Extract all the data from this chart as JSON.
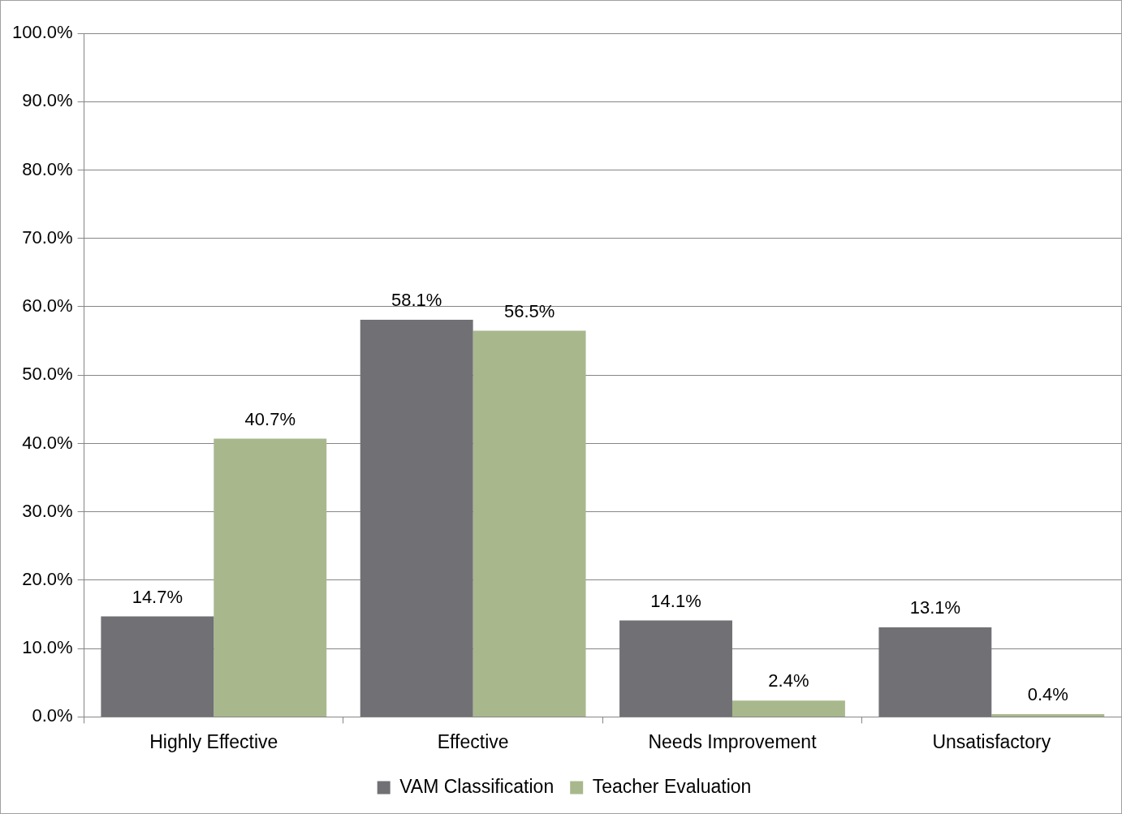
{
  "chart_data": {
    "type": "bar",
    "categories": [
      "Highly Effective",
      "Effective",
      "Needs Improvement",
      "Unsatisfactory"
    ],
    "series": [
      {
        "name": "VAM Classification",
        "color": "#717075",
        "values": [
          14.7,
          58.1,
          14.1,
          13.1
        ],
        "value_labels": [
          "14.7%",
          "58.1%",
          "14.1%",
          "13.1%"
        ]
      },
      {
        "name": "Teacher Evaluation",
        "color": "#a8b88c",
        "values": [
          40.7,
          56.5,
          2.4,
          0.4
        ],
        "value_labels": [
          "40.7%",
          "56.5%",
          "2.4%",
          "0.4%"
        ]
      }
    ],
    "ylim": [
      0,
      100
    ],
    "yticks": [
      {
        "value": 0,
        "label": "0.0%"
      },
      {
        "value": 10,
        "label": "10.0%"
      },
      {
        "value": 20,
        "label": "20.0%"
      },
      {
        "value": 30,
        "label": "30.0%"
      },
      {
        "value": 40,
        "label": "40.0%"
      },
      {
        "value": 50,
        "label": "50.0%"
      },
      {
        "value": 60,
        "label": "60.0%"
      },
      {
        "value": 70,
        "label": "70.0%"
      },
      {
        "value": 80,
        "label": "80.0%"
      },
      {
        "value": 90,
        "label": "90.0%"
      },
      {
        "value": 100,
        "label": "100.0%"
      }
    ],
    "grid": "y",
    "legend": "bottom"
  }
}
